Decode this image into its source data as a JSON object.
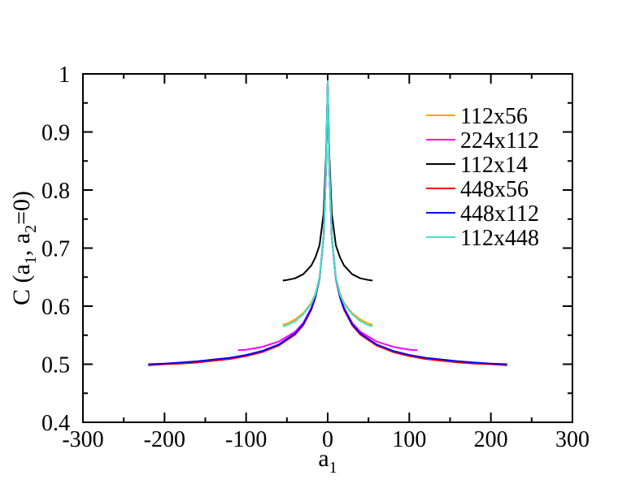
{
  "chart_data": {
    "type": "line",
    "title": "",
    "xlabel": "a",
    "xlabel_sub": "1",
    "ylabel_parts": [
      "C (a",
      "1",
      ", a",
      "2",
      "=0)"
    ],
    "xlim": [
      -300,
      300
    ],
    "ylim": [
      0.4,
      1.0
    ],
    "x_ticks": [
      -300,
      -200,
      -100,
      0,
      100,
      200,
      300
    ],
    "x_tick_labels": [
      "-300",
      "-200",
      "-100",
      "0",
      "100",
      "200",
      "300"
    ],
    "y_ticks": [
      0.4,
      0.5,
      0.6,
      0.7,
      0.8,
      0.9,
      1.0
    ],
    "y_tick_labels": [
      "0.4",
      "0.5",
      "0.6",
      "0.7",
      "0.8",
      "0.9",
      "1"
    ],
    "grid": false,
    "legend_position": "top-right",
    "series": [
      {
        "name": "112x56",
        "color": "#ffa500",
        "x": [
          -55,
          -50,
          -40,
          -30,
          -20,
          -15,
          -10,
          -5,
          -2,
          0,
          2,
          5,
          10,
          15,
          20,
          30,
          40,
          50,
          55
        ],
        "y": [
          0.568,
          0.57,
          0.577,
          0.588,
          0.606,
          0.622,
          0.65,
          0.72,
          0.84,
          0.985,
          0.84,
          0.72,
          0.65,
          0.622,
          0.606,
          0.588,
          0.577,
          0.57,
          0.568
        ]
      },
      {
        "name": "224x112",
        "color": "#ff00ff",
        "x": [
          -110,
          -100,
          -80,
          -60,
          -40,
          -30,
          -20,
          -15,
          -10,
          -5,
          -2,
          0,
          2,
          5,
          10,
          15,
          20,
          30,
          40,
          60,
          80,
          100,
          110
        ],
        "y": [
          0.524,
          0.525,
          0.53,
          0.539,
          0.556,
          0.571,
          0.597,
          0.617,
          0.648,
          0.72,
          0.84,
          0.985,
          0.84,
          0.72,
          0.648,
          0.617,
          0.597,
          0.571,
          0.556,
          0.539,
          0.53,
          0.525,
          0.524
        ]
      },
      {
        "name": "112x14",
        "color": "#000000",
        "x": [
          -55,
          -50,
          -40,
          -30,
          -20,
          -15,
          -10,
          -5,
          -2,
          0,
          2,
          5,
          10,
          15,
          20,
          30,
          40,
          50,
          55
        ],
        "y": [
          0.644,
          0.645,
          0.648,
          0.655,
          0.67,
          0.684,
          0.705,
          0.76,
          0.86,
          0.985,
          0.86,
          0.76,
          0.705,
          0.684,
          0.67,
          0.655,
          0.648,
          0.645,
          0.644
        ]
      },
      {
        "name": "448x56",
        "color": "#ff0000",
        "x": [
          -220,
          -200,
          -180,
          -160,
          -140,
          -120,
          -100,
          -80,
          -60,
          -40,
          -30,
          -20,
          -15,
          -10,
          -5,
          -2,
          0,
          2,
          5,
          10,
          15,
          20,
          30,
          40,
          60,
          80,
          100,
          120,
          140,
          160,
          180,
          200,
          220
        ],
        "y": [
          0.498,
          0.5,
          0.501,
          0.503,
          0.506,
          0.509,
          0.514,
          0.521,
          0.532,
          0.551,
          0.567,
          0.594,
          0.615,
          0.647,
          0.72,
          0.84,
          0.985,
          0.84,
          0.72,
          0.647,
          0.615,
          0.594,
          0.567,
          0.551,
          0.532,
          0.521,
          0.514,
          0.509,
          0.506,
          0.503,
          0.501,
          0.5,
          0.498
        ]
      },
      {
        "name": "448x112",
        "color": "#0000ff",
        "x": [
          -220,
          -200,
          -180,
          -160,
          -140,
          -120,
          -100,
          -80,
          -60,
          -40,
          -30,
          -20,
          -15,
          -10,
          -5,
          -2,
          0,
          2,
          5,
          10,
          15,
          20,
          30,
          40,
          60,
          80,
          100,
          120,
          140,
          160,
          180,
          200,
          220
        ],
        "y": [
          0.5,
          0.501,
          0.503,
          0.505,
          0.508,
          0.511,
          0.516,
          0.523,
          0.534,
          0.553,
          0.569,
          0.596,
          0.616,
          0.648,
          0.72,
          0.84,
          0.985,
          0.84,
          0.72,
          0.648,
          0.616,
          0.596,
          0.569,
          0.553,
          0.534,
          0.523,
          0.516,
          0.511,
          0.508,
          0.505,
          0.503,
          0.501,
          0.5
        ]
      },
      {
        "name": "112x448",
        "color": "#40e0d0",
        "x": [
          -55,
          -50,
          -40,
          -30,
          -20,
          -15,
          -10,
          -5,
          -2,
          0,
          2,
          5,
          10,
          15,
          20,
          30,
          40,
          50,
          55
        ],
        "y": [
          0.565,
          0.567,
          0.574,
          0.586,
          0.604,
          0.62,
          0.649,
          0.721,
          0.842,
          0.988,
          0.842,
          0.721,
          0.649,
          0.62,
          0.604,
          0.586,
          0.574,
          0.567,
          0.565
        ]
      }
    ]
  }
}
